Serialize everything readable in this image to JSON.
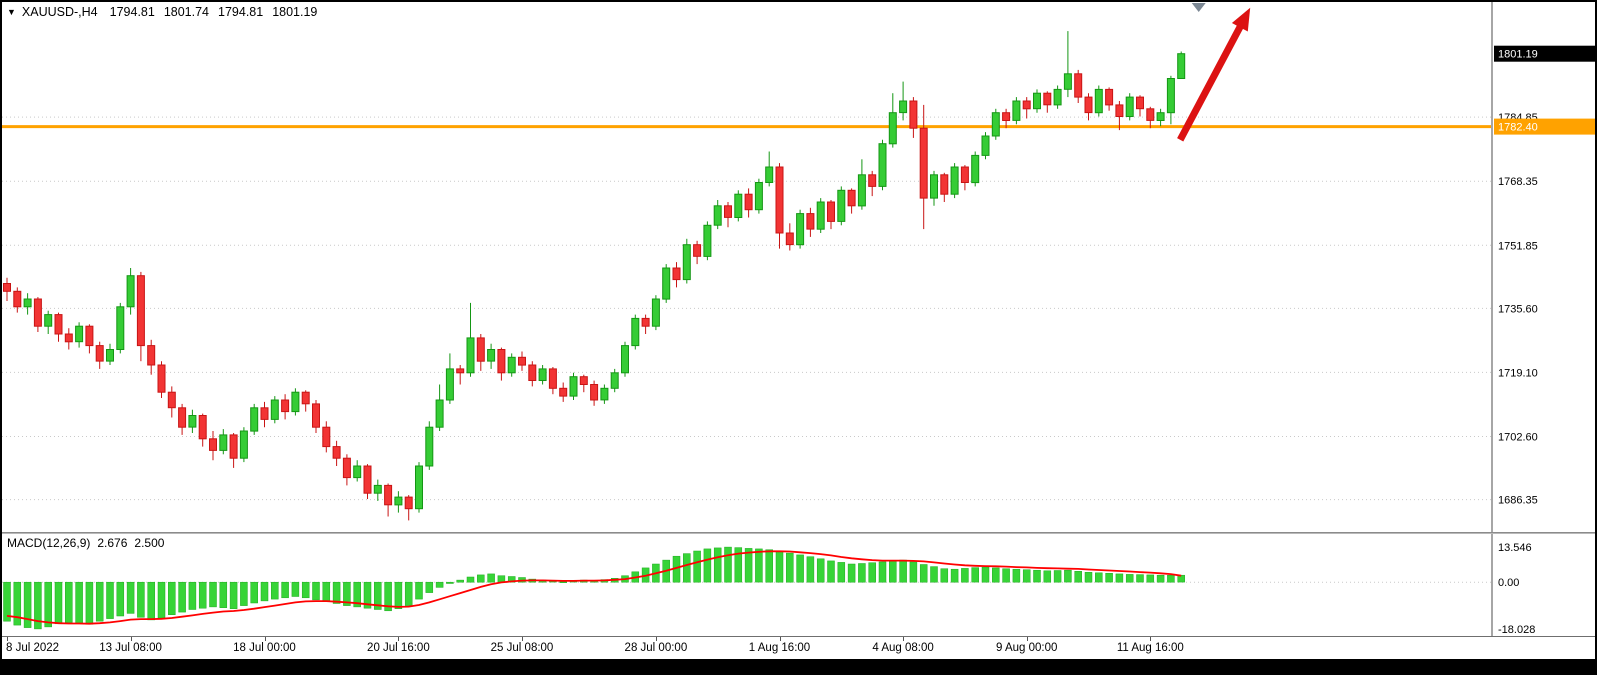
{
  "header": {
    "symbol": "XAUUSD-,H4",
    "open": "1794.81",
    "high": "1801.74",
    "low": "1794.81",
    "close": "1801.19"
  },
  "icons": {
    "menu_triangle": "▼"
  },
  "macd_panel": {
    "label": "MACD(12,26,9)",
    "value_main": "2.676",
    "value_signal": "2.500",
    "axis": [
      {
        "text": "13.546",
        "value": 13.546
      },
      {
        "text": "0.00",
        "value": 0
      },
      {
        "text": "-18.028",
        "value": -18.028
      }
    ]
  },
  "price_axis": {
    "current": {
      "text": "1801.19",
      "value": 1801.19
    },
    "hline": {
      "text": "1782.40",
      "value": 1782.4
    },
    "ticks": [
      {
        "text": "1784.85",
        "value": 1784.85
      },
      {
        "text": "1768.35",
        "value": 1768.35
      },
      {
        "text": "1751.85",
        "value": 1751.85
      },
      {
        "text": "1735.60",
        "value": 1735.6
      },
      {
        "text": "1719.10",
        "value": 1719.1
      },
      {
        "text": "1702.60",
        "value": 1702.6
      },
      {
        "text": "1686.35",
        "value": 1686.35
      }
    ]
  },
  "colors": {
    "bull": "#35cc35",
    "bull_border": "#149614",
    "bear": "#f23434",
    "bear_border": "#c81414",
    "hline": "#ffa200",
    "arrow": "#dc1212",
    "grid": "#c9c9c9",
    "histogram": "#37d437",
    "histogram_border": "#1faa1f",
    "signal": "#ff0000",
    "badge_current_bg": "#000000",
    "badge_text": "#ffffff"
  },
  "chart_data": {
    "type": "candlestick",
    "title": "XAUUSD-,H4 1794.81 1801.74 1794.81 1801.19",
    "symbol": "XAUUSD-",
    "timeframe": "H4",
    "ohlc_current": [
      1794.81,
      1801.74,
      1794.81,
      1801.19
    ],
    "price_range": [
      1678.0,
      1814.5
    ],
    "grid": "horizontal-dotted",
    "legend_position": "none",
    "y_ticks": [
      1784.85,
      1768.35,
      1751.85,
      1735.6,
      1719.1,
      1702.6,
      1686.35
    ],
    "x_ticks": [
      {
        "bar": 0,
        "label": "8 Jul 2022"
      },
      {
        "bar": 12,
        "label": "13 Jul 08:00"
      },
      {
        "bar": 25,
        "label": "18 Jul 00:00"
      },
      {
        "bar": 38,
        "label": "20 Jul 16:00"
      },
      {
        "bar": 50,
        "label": "25 Jul 08:00"
      },
      {
        "bar": 63,
        "label": "28 Jul 00:00"
      },
      {
        "bar": 75,
        "label": "1 Aug 16:00"
      },
      {
        "bar": 87,
        "label": "4 Aug 08:00"
      },
      {
        "bar": 99,
        "label": "9 Aug 00:00"
      },
      {
        "bar": 111,
        "label": "11 Aug 16:00"
      }
    ],
    "hline": 1782.4,
    "shift_marker_bar": 115.7,
    "annotation_arrow": {
      "type": "arrow-up",
      "from_bar": 113.9,
      "from_price": 1779.0,
      "to_bar": 120.7,
      "to_price": 1813.0
    },
    "candles": [
      [
        1742,
        1743.5,
        1737.5,
        1740
      ],
      [
        1740,
        1741,
        1734.5,
        1736
      ],
      [
        1736,
        1739.5,
        1734,
        1738
      ],
      [
        1738,
        1738.5,
        1729.5,
        1731
      ],
      [
        1731,
        1735,
        1729,
        1734
      ],
      [
        1734,
        1734.5,
        1727,
        1729
      ],
      [
        1729,
        1730.5,
        1725,
        1727
      ],
      [
        1727,
        1732,
        1725.5,
        1731
      ],
      [
        1731,
        1731.5,
        1724,
        1726
      ],
      [
        1726,
        1727,
        1720,
        1722
      ],
      [
        1722,
        1726.5,
        1721,
        1725
      ],
      [
        1725,
        1737,
        1724,
        1736
      ],
      [
        1736,
        1746,
        1734,
        1744
      ],
      [
        1744,
        1745,
        1722,
        1726
      ],
      [
        1726,
        1727.5,
        1718.5,
        1721
      ],
      [
        1721,
        1722,
        1712.5,
        1714
      ],
      [
        1714,
        1715.5,
        1707.5,
        1710
      ],
      [
        1710,
        1711,
        1703,
        1705
      ],
      [
        1705,
        1709.5,
        1703.5,
        1708
      ],
      [
        1708,
        1708.5,
        1700,
        1702
      ],
      [
        1702,
        1704,
        1696.5,
        1699
      ],
      [
        1699,
        1704.5,
        1698,
        1703
      ],
      [
        1703,
        1703.5,
        1694.5,
        1697
      ],
      [
        1697,
        1705,
        1696,
        1704
      ],
      [
        1704,
        1711,
        1703,
        1710
      ],
      [
        1710,
        1711.5,
        1705,
        1707
      ],
      [
        1707,
        1713,
        1706,
        1712
      ],
      [
        1712,
        1713.5,
        1707,
        1709
      ],
      [
        1709,
        1715,
        1708,
        1714
      ],
      [
        1714,
        1714.5,
        1709,
        1711
      ],
      [
        1711,
        1712,
        1703.5,
        1705
      ],
      [
        1705,
        1706.5,
        1698.5,
        1700
      ],
      [
        1700,
        1701.5,
        1695,
        1697
      ],
      [
        1697,
        1698,
        1690,
        1692
      ],
      [
        1692,
        1696.5,
        1691,
        1695
      ],
      [
        1695,
        1695.5,
        1686.5,
        1688
      ],
      [
        1688,
        1691.5,
        1686,
        1690
      ],
      [
        1690,
        1690.5,
        1682,
        1685
      ],
      [
        1685,
        1688.5,
        1683,
        1687
      ],
      [
        1687,
        1687.5,
        1681,
        1684
      ],
      [
        1684,
        1696,
        1683,
        1695
      ],
      [
        1695,
        1706.5,
        1694,
        1705
      ],
      [
        1705,
        1716,
        1704,
        1712
      ],
      [
        1712,
        1724,
        1711,
        1720
      ],
      [
        1720,
        1721,
        1716,
        1719
      ],
      [
        1719,
        1737,
        1718,
        1728
      ],
      [
        1728,
        1729,
        1719.5,
        1722
      ],
      [
        1722,
        1726.5,
        1720,
        1725
      ],
      [
        1725,
        1725.5,
        1717,
        1719
      ],
      [
        1719,
        1724,
        1718,
        1723
      ],
      [
        1723,
        1724.5,
        1719.5,
        1721
      ],
      [
        1721,
        1722,
        1715.5,
        1717
      ],
      [
        1717,
        1721,
        1716,
        1720
      ],
      [
        1720,
        1720.5,
        1713.5,
        1715
      ],
      [
        1715,
        1716.5,
        1711.5,
        1713
      ],
      [
        1713,
        1719,
        1712,
        1718
      ],
      [
        1718,
        1718.5,
        1714,
        1716
      ],
      [
        1716,
        1717,
        1710.5,
        1712
      ],
      [
        1712,
        1716,
        1711,
        1715
      ],
      [
        1715,
        1720,
        1714,
        1719
      ],
      [
        1719,
        1727,
        1718,
        1726
      ],
      [
        1726,
        1734,
        1725,
        1733
      ],
      [
        1733,
        1734,
        1729,
        1731
      ],
      [
        1731,
        1739,
        1730,
        1738
      ],
      [
        1738,
        1747,
        1737,
        1746
      ],
      [
        1746,
        1747.5,
        1741,
        1743
      ],
      [
        1743,
        1753.5,
        1742,
        1752
      ],
      [
        1752,
        1753,
        1747,
        1749
      ],
      [
        1749,
        1758,
        1748,
        1757
      ],
      [
        1757,
        1763.5,
        1756,
        1762
      ],
      [
        1762,
        1763,
        1756.5,
        1759
      ],
      [
        1759,
        1766,
        1758,
        1765
      ],
      [
        1765,
        1766.5,
        1759,
        1761
      ],
      [
        1761,
        1769,
        1760,
        1768
      ],
      [
        1768,
        1776,
        1767,
        1772
      ],
      [
        1772,
        1773,
        1751,
        1755
      ],
      [
        1755,
        1757.5,
        1750.5,
        1752
      ],
      [
        1752,
        1761,
        1751,
        1760
      ],
      [
        1760,
        1761.5,
        1754,
        1756
      ],
      [
        1756,
        1764,
        1755,
        1763
      ],
      [
        1763,
        1763.5,
        1756,
        1758
      ],
      [
        1758,
        1767,
        1757,
        1766
      ],
      [
        1766,
        1766.5,
        1760,
        1762
      ],
      [
        1762,
        1774,
        1761,
        1770
      ],
      [
        1770,
        1771,
        1764.5,
        1767
      ],
      [
        1767,
        1779,
        1766,
        1778
      ],
      [
        1778,
        1791,
        1777,
        1786
      ],
      [
        1786,
        1794,
        1784,
        1789
      ],
      [
        1789,
        1790,
        1779.5,
        1782
      ],
      [
        1782,
        1788,
        1756,
        1764
      ],
      [
        1764,
        1771,
        1762,
        1770
      ],
      [
        1770,
        1770.5,
        1763,
        1765
      ],
      [
        1765,
        1773,
        1764,
        1772
      ],
      [
        1772,
        1772.5,
        1766,
        1768
      ],
      [
        1768,
        1776,
        1767,
        1775
      ],
      [
        1775,
        1781,
        1774,
        1780
      ],
      [
        1780,
        1787,
        1779,
        1786
      ],
      [
        1786,
        1787,
        1782,
        1784
      ],
      [
        1784,
        1790,
        1783,
        1789
      ],
      [
        1789,
        1790,
        1784.5,
        1787
      ],
      [
        1787,
        1792,
        1786,
        1791
      ],
      [
        1791,
        1791.5,
        1786,
        1788
      ],
      [
        1788,
        1793,
        1787,
        1792
      ],
      [
        1792,
        1807,
        1790,
        1796
      ],
      [
        1796,
        1797,
        1788.5,
        1790
      ],
      [
        1790,
        1791,
        1784,
        1786
      ],
      [
        1786,
        1793,
        1785,
        1792
      ],
      [
        1792,
        1792.5,
        1786.5,
        1788
      ],
      [
        1788,
        1789,
        1781.5,
        1785
      ],
      [
        1785,
        1791,
        1784,
        1790
      ],
      [
        1790,
        1790.5,
        1785,
        1787
      ],
      [
        1787,
        1787.5,
        1782,
        1784
      ],
      [
        1784,
        1787,
        1782.5,
        1786
      ],
      [
        1786,
        1795.5,
        1783,
        1794.8
      ],
      [
        1794.8,
        1801.74,
        1794.8,
        1801.19
      ]
    ],
    "macd": {
      "type": "histogram+line",
      "params": [
        12,
        26,
        9
      ],
      "current_macd": 2.676,
      "current_signal": 2.5,
      "range": [
        -18.028,
        13.546
      ],
      "histogram": [
        -15.0,
        -16.5,
        -17.5,
        -18.0,
        -17.2,
        -16.0,
        -15.5,
        -15.8,
        -16.2,
        -15.0,
        -14.0,
        -13.0,
        -12.0,
        -13.5,
        -14.5,
        -13.8,
        -12.5,
        -11.5,
        -10.5,
        -10.0,
        -9.5,
        -9.8,
        -10.2,
        -9.0,
        -8.0,
        -7.2,
        -6.5,
        -6.0,
        -5.5,
        -6.0,
        -6.8,
        -7.5,
        -8.2,
        -9.0,
        -9.5,
        -10.0,
        -10.5,
        -11.0,
        -10.2,
        -9.0,
        -6.5,
        -4.0,
        -2.0,
        -0.5,
        0.8,
        2.0,
        2.8,
        3.2,
        2.5,
        2.2,
        1.8,
        1.2,
        0.8,
        0.4,
        0.2,
        0.4,
        0.8,
        0.6,
        1.0,
        1.5,
        2.5,
        4.0,
        5.5,
        7.0,
        8.5,
        10.0,
        11.0,
        12.0,
        12.8,
        13.2,
        13.5,
        13.3,
        13.0,
        12.8,
        12.5,
        12.0,
        11.2,
        10.5,
        9.8,
        9.0,
        8.2,
        7.6,
        7.0,
        7.2,
        7.5,
        7.8,
        8.2,
        8.5,
        7.8,
        6.8,
        6.0,
        5.2,
        5.0,
        5.3,
        5.6,
        5.8,
        5.5,
        5.2,
        5.0,
        4.8,
        4.6,
        4.4,
        4.5,
        4.6,
        4.2,
        3.8,
        3.6,
        3.4,
        3.2,
        3.0,
        2.9,
        2.8,
        2.7,
        2.7,
        2.676
      ],
      "signal": [
        -13.0,
        -13.5,
        -14.2,
        -15.0,
        -15.5,
        -15.8,
        -15.9,
        -15.9,
        -16.0,
        -15.8,
        -15.5,
        -15.0,
        -14.4,
        -14.2,
        -14.2,
        -14.1,
        -13.8,
        -13.3,
        -12.8,
        -12.2,
        -11.7,
        -11.3,
        -11.1,
        -10.7,
        -10.2,
        -9.6,
        -9.0,
        -8.4,
        -7.8,
        -7.4,
        -7.3,
        -7.3,
        -7.5,
        -7.8,
        -8.1,
        -8.5,
        -8.9,
        -9.3,
        -9.5,
        -9.4,
        -8.8,
        -7.8,
        -6.6,
        -5.4,
        -4.2,
        -3.0,
        -1.8,
        -0.8,
        -0.1,
        0.3,
        0.6,
        0.7,
        0.7,
        0.6,
        0.5,
        0.5,
        0.6,
        0.6,
        0.7,
        0.9,
        1.2,
        1.8,
        2.5,
        3.4,
        4.4,
        5.5,
        6.6,
        7.7,
        8.7,
        9.6,
        10.4,
        11.0,
        11.4,
        11.7,
        11.9,
        11.9,
        11.8,
        11.5,
        11.2,
        10.8,
        10.3,
        9.7,
        9.2,
        8.8,
        8.5,
        8.3,
        8.3,
        8.3,
        8.2,
        8.0,
        7.6,
        7.2,
        6.8,
        6.5,
        6.3,
        6.2,
        6.1,
        6.0,
        5.8,
        5.7,
        5.5,
        5.4,
        5.3,
        5.2,
        5.1,
        4.9,
        4.7,
        4.5,
        4.3,
        4.1,
        3.9,
        3.7,
        3.4,
        3.1,
        2.5
      ]
    }
  }
}
